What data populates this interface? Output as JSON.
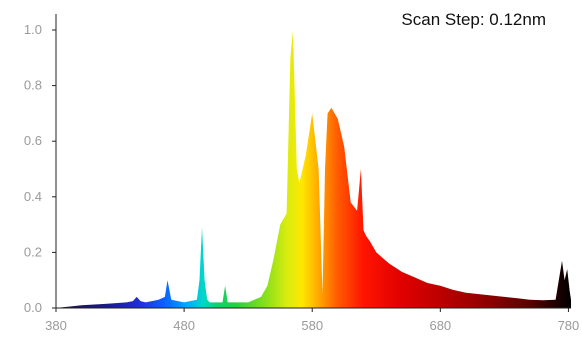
{
  "chart_data": {
    "type": "area",
    "title": "",
    "xlabel": "",
    "ylabel": "",
    "annotation": "Scan Step: 0.12nm",
    "xlim": [
      380,
      782
    ],
    "ylim": [
      0,
      1.0
    ],
    "x_ticks": [
      "380",
      "480",
      "580",
      "680",
      "780"
    ],
    "y_ticks": [
      "0.0",
      "0.2",
      "0.4",
      "0.6",
      "0.8",
      "1.0"
    ],
    "fill": "wavelength-colored spectrum (blue to red, dark red/black beyond 700 nm)",
    "grid": false,
    "series": [
      {
        "x": [
          380,
          400,
          420,
          435,
          440,
          443,
          446,
          450,
          460,
          465,
          467,
          470,
          480,
          490,
          492,
          494,
          496,
          498,
          500,
          505,
          510,
          512,
          514,
          520,
          530,
          540,
          545,
          550,
          555,
          560,
          563,
          565,
          568,
          570,
          575,
          580,
          585,
          588,
          590,
          592,
          595,
          600,
          605,
          610,
          615,
          618,
          620,
          622,
          625,
          630,
          640,
          650,
          660,
          670,
          680,
          690,
          700,
          710,
          720,
          730,
          740,
          750,
          760,
          770,
          775,
          777,
          779,
          781,
          782
        ],
        "y": [
          0.0,
          0.01,
          0.015,
          0.02,
          0.025,
          0.04,
          0.025,
          0.02,
          0.03,
          0.04,
          0.1,
          0.03,
          0.02,
          0.03,
          0.1,
          0.29,
          0.1,
          0.03,
          0.02,
          0.02,
          0.02,
          0.08,
          0.02,
          0.02,
          0.02,
          0.04,
          0.08,
          0.18,
          0.3,
          0.34,
          0.9,
          1.0,
          0.5,
          0.45,
          0.55,
          0.7,
          0.5,
          0.05,
          0.5,
          0.7,
          0.72,
          0.68,
          0.58,
          0.38,
          0.35,
          0.5,
          0.28,
          0.26,
          0.24,
          0.2,
          0.16,
          0.13,
          0.11,
          0.09,
          0.08,
          0.065,
          0.055,
          0.05,
          0.045,
          0.04,
          0.035,
          0.03,
          0.028,
          0.03,
          0.17,
          0.1,
          0.14,
          0.06,
          0.03
        ]
      }
    ]
  }
}
